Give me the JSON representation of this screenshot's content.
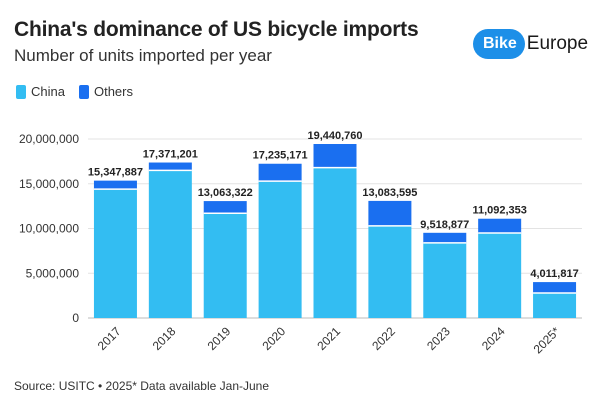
{
  "header": {
    "title": "China's dominance of US bicycle imports",
    "subtitle": "Number of units imported per year"
  },
  "logo": {
    "part1": "Bike",
    "part2": "Europe",
    "color": "#1d8fe8"
  },
  "legend": [
    {
      "label": "China",
      "color": "#33bdf2"
    },
    {
      "label": "Others",
      "color": "#1a6ff0"
    }
  ],
  "footer": {
    "source": "Source: USITC • 2025* Data available Jan-June"
  },
  "chart_data": {
    "type": "bar",
    "stacked": true,
    "categories": [
      "2017",
      "2018",
      "2019",
      "2020",
      "2021",
      "2022",
      "2023",
      "2024",
      "2025*"
    ],
    "series": [
      {
        "name": "China",
        "color": "#33bdf2",
        "values": [
          14400000,
          16500000,
          11700000,
          15300000,
          16800000,
          10300000,
          8400000,
          9500000,
          2800000
        ]
      },
      {
        "name": "Others",
        "color": "#1a6ff0",
        "values": [
          947887,
          871201,
          1363322,
          1935171,
          2640760,
          2783595,
          1118877,
          1592353,
          1211817
        ]
      }
    ],
    "totals": [
      15347887,
      17371201,
      13063322,
      17235171,
      19440760,
      13083595,
      9518877,
      11092353,
      4011817
    ],
    "total_labels": [
      "15,347,887",
      "17,371,201",
      "13,063,322",
      "17,235,171",
      "19,440,760",
      "13,083,595",
      "9,518,877",
      "11,092,353",
      "4,011,817"
    ],
    "y_ticks": [
      0,
      5000000,
      10000000,
      15000000,
      20000000
    ],
    "y_tick_labels": [
      "0",
      "5,000,000",
      "10,000,000",
      "15,000,000",
      "20,000,000"
    ],
    "ylim": [
      0,
      20000000
    ],
    "grid": true,
    "legend_position": "top-left"
  }
}
